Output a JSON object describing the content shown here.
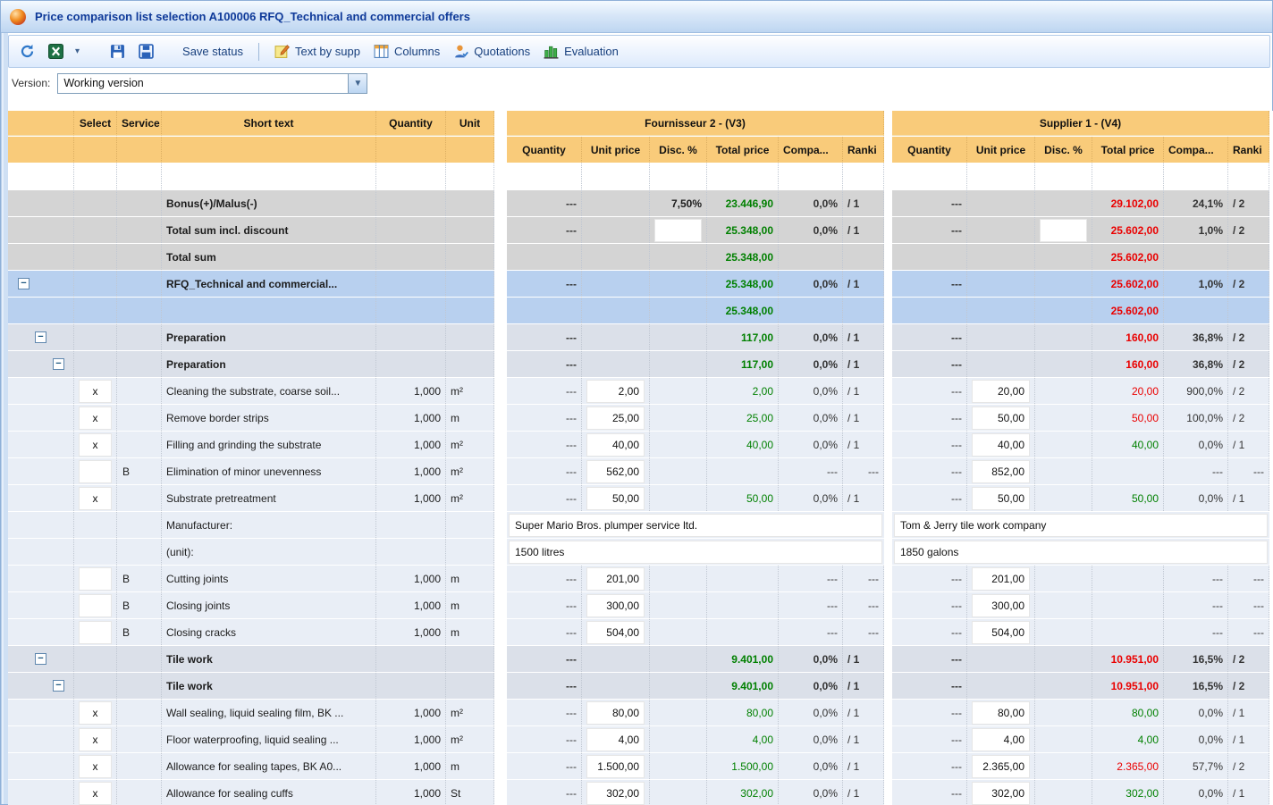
{
  "window": {
    "title": "Price comparison list selection A100006 RFQ_Technical and commercial offers"
  },
  "toolbar": {
    "save_status": "Save status",
    "text_by_supplier": "Text by supp",
    "columns": "Columns",
    "quotations": "Quotations",
    "evaluation": "Evaluation"
  },
  "version": {
    "label": "Version:",
    "value": "Working version"
  },
  "colors": {
    "header_bg": "#F9CB7A",
    "green": "#008000",
    "red": "#EA0000",
    "selected_row": "#B8D0EF",
    "summary_row": "#D4D4D4",
    "group_row": "#DBE0E9",
    "item_row": "#E9EEF6",
    "title_text": "#0F3A99"
  },
  "table": {
    "fixed_headers": [
      "",
      "Select",
      "Service",
      "Short text",
      "Quantity",
      "Unit"
    ],
    "groups": [
      {
        "name": "Fournisseur 2 - (V3)"
      },
      {
        "name": "Supplier 1 - (V4)"
      }
    ],
    "sub_headers": [
      "Quantity",
      "Unit price",
      "Disc. %",
      "Total price",
      "Compa...",
      "Ranki"
    ],
    "rows": [
      {
        "type": "blank"
      },
      {
        "type": "summary",
        "short_text": "Bonus(+)/Malus(-)",
        "f2": {
          "qty": "---",
          "disc": "7,50%",
          "total": "23.446,90",
          "total_color": "green",
          "compa": "0,0%",
          "rank": "/ 1"
        },
        "s1": {
          "qty": "---",
          "total": "29.102,00",
          "total_color": "red",
          "compa": "24,1%",
          "rank": "/ 2"
        }
      },
      {
        "type": "summary",
        "short_text": "Total sum incl. discount",
        "f2": {
          "qty": "---",
          "disc_box": true,
          "total": "25.348,00",
          "total_color": "green",
          "compa": "0,0%",
          "rank": "/ 1"
        },
        "s1": {
          "qty": "---",
          "disc_box": true,
          "total": "25.602,00",
          "total_color": "red",
          "compa": "1,0%",
          "rank": "/ 2"
        }
      },
      {
        "type": "summary",
        "short_text": "Total sum",
        "f2": {
          "total": "25.348,00",
          "total_color": "green"
        },
        "s1": {
          "total": "25.602,00",
          "total_color": "red"
        }
      },
      {
        "type": "selected",
        "expander": true,
        "indent": 0,
        "short_text": "RFQ_Technical and commercial...",
        "f2": {
          "qty": "---",
          "total": "25.348,00",
          "total_color": "green",
          "compa": "0,0%",
          "rank": "/ 1"
        },
        "s1": {
          "qty": "---",
          "total": "25.602,00",
          "total_color": "red",
          "compa": "1,0%",
          "rank": "/ 2"
        }
      },
      {
        "type": "selected",
        "f2": {
          "total": "25.348,00",
          "total_color": "green"
        },
        "s1": {
          "total": "25.602,00",
          "total_color": "red"
        }
      },
      {
        "type": "group",
        "expander": true,
        "indent": 1,
        "short_text": "Preparation",
        "f2": {
          "qty": "---",
          "total": "117,00",
          "total_color": "green",
          "compa": "0,0%",
          "rank": "/ 1"
        },
        "s1": {
          "qty": "---",
          "total": "160,00",
          "total_color": "red",
          "compa": "36,8%",
          "rank": "/ 2"
        }
      },
      {
        "type": "group",
        "expander": true,
        "indent": 2,
        "short_text": "Preparation",
        "f2": {
          "qty": "---",
          "total": "117,00",
          "total_color": "green",
          "compa": "0,0%",
          "rank": "/ 1"
        },
        "s1": {
          "qty": "---",
          "total": "160,00",
          "total_color": "red",
          "compa": "36,8%",
          "rank": "/ 2"
        }
      },
      {
        "type": "item",
        "select": "x",
        "short_text": "Cleaning the substrate, coarse soil...",
        "quantity": "1,000",
        "unit": "m²",
        "f2": {
          "qty": "---",
          "unit_price": "2,00",
          "total": "2,00",
          "total_color": "green",
          "compa": "0,0%",
          "rank": "/ 1"
        },
        "s1": {
          "qty": "---",
          "unit_price": "20,00",
          "total": "20,00",
          "total_color": "red",
          "compa": "900,0%",
          "rank": "/ 2"
        }
      },
      {
        "type": "item",
        "select": "x",
        "short_text": "Remove border strips",
        "quantity": "1,000",
        "unit": "m",
        "f2": {
          "qty": "---",
          "unit_price": "25,00",
          "total": "25,00",
          "total_color": "green",
          "compa": "0,0%",
          "rank": "/ 1"
        },
        "s1": {
          "qty": "---",
          "unit_price": "50,00",
          "total": "50,00",
          "total_color": "red",
          "compa": "100,0%",
          "rank": "/ 2"
        }
      },
      {
        "type": "item",
        "select": "x",
        "short_text": "Filling and grinding the substrate",
        "quantity": "1,000",
        "unit": "m²",
        "f2": {
          "qty": "---",
          "unit_price": "40,00",
          "total": "40,00",
          "total_color": "green",
          "compa": "0,0%",
          "rank": "/ 1"
        },
        "s1": {
          "qty": "---",
          "unit_price": "40,00",
          "total": "40,00",
          "total_color": "green",
          "compa": "0,0%",
          "rank": "/ 1"
        }
      },
      {
        "type": "item",
        "select": "",
        "service": "B",
        "short_text": "Elimination of minor unevenness",
        "quantity": "1,000",
        "unit": "m²",
        "f2": {
          "qty": "---",
          "unit_price": "562,00",
          "compa": "---",
          "rank": "---"
        },
        "s1": {
          "qty": "---",
          "unit_price": "852,00",
          "compa": "---",
          "rank": "---"
        }
      },
      {
        "type": "item",
        "select": "x",
        "short_text": "Substrate pretreatment",
        "quantity": "1,000",
        "unit": "m²",
        "f2": {
          "qty": "---",
          "unit_price": "50,00",
          "total": "50,00",
          "total_color": "green",
          "compa": "0,0%",
          "rank": "/ 1"
        },
        "s1": {
          "qty": "---",
          "unit_price": "50,00",
          "total": "50,00",
          "total_color": "green",
          "compa": "0,0%",
          "rank": "/ 1"
        }
      },
      {
        "type": "info",
        "short_text": "Manufacturer:",
        "f2_text": "Super Mario Bros. plumper service ltd.",
        "s1_text": "Tom & Jerry tile work company"
      },
      {
        "type": "info",
        "short_text": "(unit):",
        "f2_text": "1500 litres",
        "s1_text": "1850 galons"
      },
      {
        "type": "item",
        "select": "",
        "service": "B",
        "short_text": "Cutting joints",
        "quantity": "1,000",
        "unit": "m",
        "f2": {
          "qty": "---",
          "unit_price": "201,00",
          "compa": "---",
          "rank": "---"
        },
        "s1": {
          "qty": "---",
          "unit_price": "201,00",
          "compa": "---",
          "rank": "---"
        }
      },
      {
        "type": "item",
        "select": "",
        "service": "B",
        "short_text": "Closing joints",
        "quantity": "1,000",
        "unit": "m",
        "f2": {
          "qty": "---",
          "unit_price": "300,00",
          "compa": "---",
          "rank": "---"
        },
        "s1": {
          "qty": "---",
          "unit_price": "300,00",
          "compa": "---",
          "rank": "---"
        }
      },
      {
        "type": "item",
        "select": "",
        "service": "B",
        "short_text": "Closing cracks",
        "quantity": "1,000",
        "unit": "m",
        "f2": {
          "qty": "---",
          "unit_price": "504,00",
          "compa": "---",
          "rank": "---"
        },
        "s1": {
          "qty": "---",
          "unit_price": "504,00",
          "compa": "---",
          "rank": "---"
        }
      },
      {
        "type": "group",
        "expander": true,
        "indent": 1,
        "short_text": "Tile work",
        "f2": {
          "qty": "---",
          "total": "9.401,00",
          "total_color": "green",
          "compa": "0,0%",
          "rank": "/ 1"
        },
        "s1": {
          "qty": "---",
          "total": "10.951,00",
          "total_color": "red",
          "compa": "16,5%",
          "rank": "/ 2"
        }
      },
      {
        "type": "group",
        "expander": true,
        "indent": 2,
        "short_text": "Tile work",
        "f2": {
          "qty": "---",
          "total": "9.401,00",
          "total_color": "green",
          "compa": "0,0%",
          "rank": "/ 1"
        },
        "s1": {
          "qty": "---",
          "total": "10.951,00",
          "total_color": "red",
          "compa": "16,5%",
          "rank": "/ 2"
        }
      },
      {
        "type": "item",
        "select": "x",
        "short_text": "Wall sealing, liquid sealing film, BK ...",
        "quantity": "1,000",
        "unit": "m²",
        "f2": {
          "qty": "---",
          "unit_price": "80,00",
          "total": "80,00",
          "total_color": "green",
          "compa": "0,0%",
          "rank": "/ 1"
        },
        "s1": {
          "qty": "---",
          "unit_price": "80,00",
          "total": "80,00",
          "total_color": "green",
          "compa": "0,0%",
          "rank": "/ 1"
        }
      },
      {
        "type": "item",
        "select": "x",
        "short_text": "Floor waterproofing, liquid sealing ...",
        "quantity": "1,000",
        "unit": "m²",
        "f2": {
          "qty": "---",
          "unit_price": "4,00",
          "total": "4,00",
          "total_color": "green",
          "compa": "0,0%",
          "rank": "/ 1"
        },
        "s1": {
          "qty": "---",
          "unit_price": "4,00",
          "total": "4,00",
          "total_color": "green",
          "compa": "0,0%",
          "rank": "/ 1"
        }
      },
      {
        "type": "item",
        "select": "x",
        "short_text": "Allowance for sealing tapes, BK A0...",
        "quantity": "1,000",
        "unit": "m",
        "f2": {
          "qty": "---",
          "unit_price": "1.500,00",
          "total": "1.500,00",
          "total_color": "green",
          "compa": "0,0%",
          "rank": "/ 1"
        },
        "s1": {
          "qty": "---",
          "unit_price": "2.365,00",
          "total": "2.365,00",
          "total_color": "red",
          "compa": "57,7%",
          "rank": "/ 2"
        }
      },
      {
        "type": "item",
        "select": "x",
        "short_text": "Allowance for sealing cuffs",
        "quantity": "1,000",
        "unit": "St",
        "f2": {
          "qty": "---",
          "unit_price": "302,00",
          "total": "302,00",
          "total_color": "green",
          "compa": "0,0%",
          "rank": "/ 1"
        },
        "s1": {
          "qty": "---",
          "unit_price": "302,00",
          "total": "302,00",
          "total_color": "green",
          "compa": "0,0%",
          "rank": "/ 1"
        }
      }
    ]
  }
}
